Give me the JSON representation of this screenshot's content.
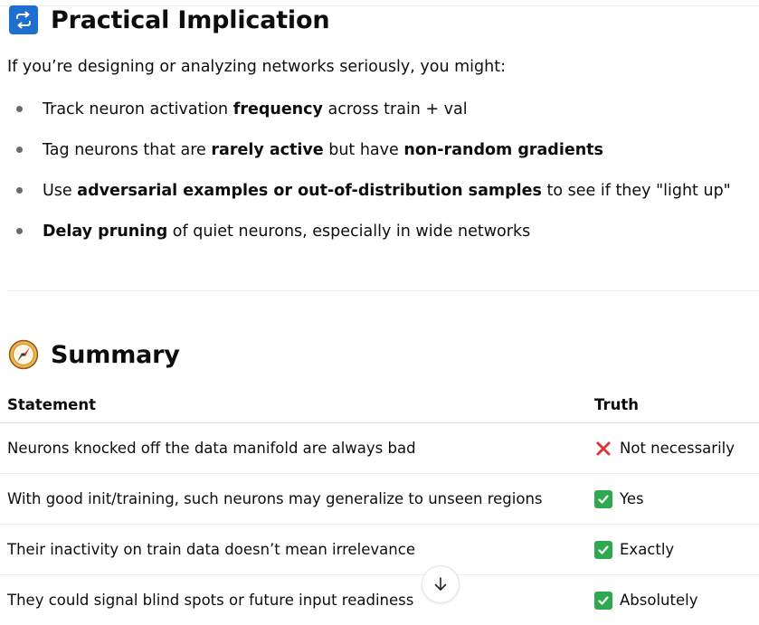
{
  "section1": {
    "title": "Practical Implication",
    "icon": "repeat-icon",
    "intro": "If you’re designing or analyzing networks seriously, you might:",
    "bullets": [
      [
        {
          "text": "Track neuron activation ",
          "bold": false
        },
        {
          "text": "frequency",
          "bold": true
        },
        {
          "text": " across train + val",
          "bold": false
        }
      ],
      [
        {
          "text": "Tag neurons that are ",
          "bold": false
        },
        {
          "text": "rarely active",
          "bold": true
        },
        {
          "text": " but have ",
          "bold": false
        },
        {
          "text": "non-random gradients",
          "bold": true
        }
      ],
      [
        {
          "text": "Use ",
          "bold": false
        },
        {
          "text": "adversarial examples or out-of-distribution samples",
          "bold": true
        },
        {
          "text": " to see if they \"light up\"",
          "bold": false
        }
      ],
      [
        {
          "text": "Delay pruning",
          "bold": true
        },
        {
          "text": " of quiet neurons, especially in wide networks",
          "bold": false
        }
      ]
    ]
  },
  "section2": {
    "title": "Summary",
    "icon": "compass-icon",
    "table": {
      "headers": [
        "Statement",
        "Truth"
      ],
      "rows": [
        {
          "statement": "Neurons knocked off the data manifold are always bad",
          "mark": "cross",
          "truth": "Not necessarily"
        },
        {
          "statement": "With good init/training, such neurons may generalize to unseen regions",
          "mark": "check",
          "truth": "Yes"
        },
        {
          "statement": "Their inactivity on train data doesn’t mean irrelevance",
          "mark": "check",
          "truth": "Exactly"
        },
        {
          "statement": "They could signal blind spots or future input readiness",
          "mark": "check",
          "truth": "Absolutely"
        }
      ]
    }
  },
  "colors": {
    "text": "#0d0d0d",
    "repeat_icon_bg": "#1f6fd1",
    "check_green": "#2fa84f",
    "cross_red": "#d93636"
  }
}
